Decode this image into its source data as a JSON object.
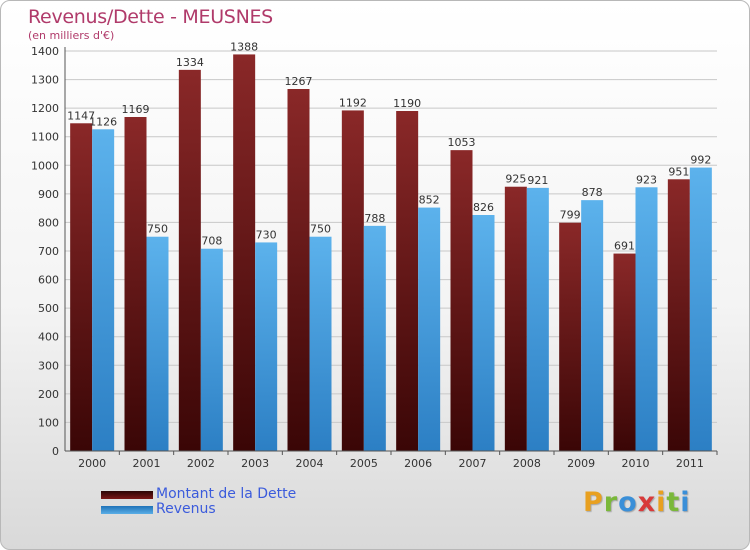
{
  "chart_data": {
    "type": "bar",
    "title": "Revenus/Dette - MEUSNES",
    "subtitle": "(en milliers d'€)",
    "categories": [
      "2000",
      "2001",
      "2002",
      "2003",
      "2004",
      "2005",
      "2006",
      "2007",
      "2008",
      "2009",
      "2010",
      "2011"
    ],
    "series": [
      {
        "name": "Montant de la Dette",
        "color": "#7a1c1c",
        "values": [
          1147,
          1169,
          1334,
          1388,
          1267,
          1192,
          1190,
          1053,
          925,
          799,
          691,
          951
        ]
      },
      {
        "name": "Revenus",
        "color": "#4ea6e6",
        "values": [
          1126,
          750,
          708,
          730,
          750,
          788,
          852,
          826,
          921,
          878,
          923,
          992
        ]
      }
    ],
    "ylim": [
      0,
      1400
    ],
    "yticks": [
      0,
      100,
      200,
      300,
      400,
      500,
      600,
      700,
      800,
      900,
      1000,
      1100,
      1200,
      1300,
      1400
    ],
    "grid": true,
    "legend": "bottom-left"
  },
  "logo": {
    "letters": [
      "P",
      "r",
      "o",
      "x",
      "i",
      "t",
      "i"
    ],
    "colors": [
      "#e8a020",
      "#7ab83a",
      "#3a8fd8",
      "#d83a3a",
      "#e8a020",
      "#7ab83a",
      "#3a8fd8"
    ]
  }
}
